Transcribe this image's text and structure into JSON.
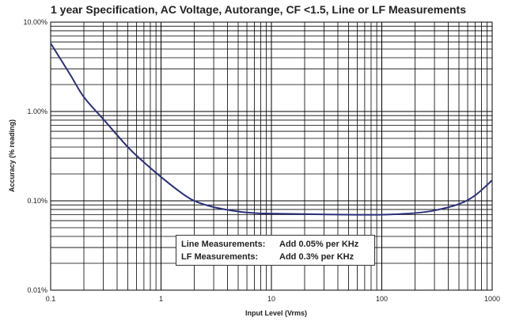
{
  "chart_data": {
    "type": "line",
    "title": "1 year Specification, AC Voltage, Autorange, CF <1.5, Line or LF Measurements",
    "xlabel": "Input Level (Vrms)",
    "ylabel": "Accuracy (% reading)",
    "xscale": "log",
    "yscale": "log",
    "xlim": [
      0.1,
      1000
    ],
    "ylim": [
      0.01,
      10
    ],
    "grid": true,
    "x_ticks": [
      {
        "value": 0.1,
        "label": "0.1"
      },
      {
        "value": 1,
        "label": "1"
      },
      {
        "value": 10,
        "label": "10"
      },
      {
        "value": 100,
        "label": "100"
      },
      {
        "value": 1000,
        "label": "1000"
      }
    ],
    "y_ticks": [
      {
        "value": 0.01,
        "label": "0.01%"
      },
      {
        "value": 0.1,
        "label": "0.10%"
      },
      {
        "value": 1,
        "label": "1.00%"
      },
      {
        "value": 10,
        "label": "10.00%"
      }
    ],
    "series": [
      {
        "color": "#2b2f7a",
        "x": [
          0.1,
          0.15,
          0.2,
          0.3,
          0.5,
          0.7,
          1,
          1.5,
          2,
          3,
          5,
          7,
          10,
          20,
          50,
          100,
          200,
          300,
          500,
          700,
          1000
        ],
        "y": [
          5.8,
          2.6,
          1.45,
          0.82,
          0.4,
          0.27,
          0.185,
          0.125,
          0.1,
          0.085,
          0.076,
          0.073,
          0.072,
          0.071,
          0.07,
          0.07,
          0.073,
          0.078,
          0.092,
          0.115,
          0.17
        ]
      }
    ],
    "annotations": [
      {
        "label": "Line Measurements:",
        "text": "Add 0.05% per KHz"
      },
      {
        "label": "LF Measurements:",
        "text": "Add 0.3% per KHz"
      }
    ]
  }
}
